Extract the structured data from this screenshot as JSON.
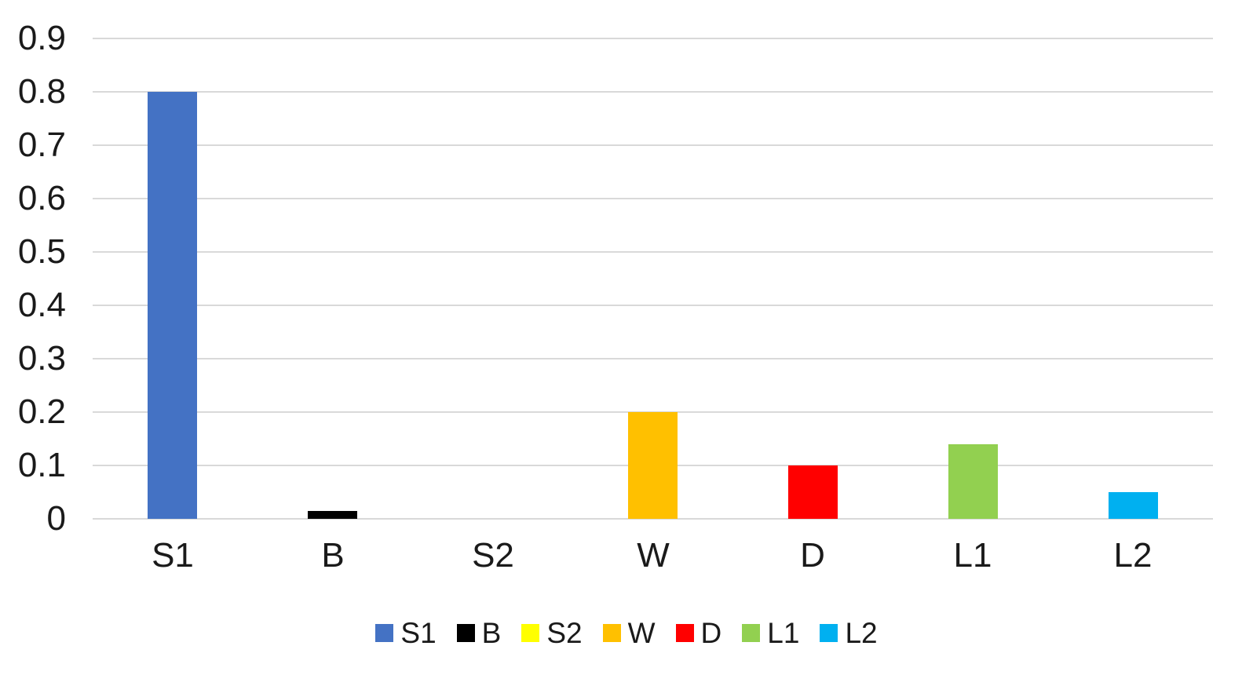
{
  "chart_data": {
    "type": "bar",
    "title": "",
    "xlabel": "",
    "ylabel": "",
    "categories": [
      "S1",
      "B",
      "S2",
      "W",
      "D",
      "L1",
      "L2"
    ],
    "values": [
      0.8,
      0.015,
      0,
      0.2,
      0.1,
      0.14,
      0.05
    ],
    "colors": [
      "#4472C4",
      "#000000",
      "#FFFF00",
      "#FFC000",
      "#FF0000",
      "#92D050",
      "#00B0F0"
    ],
    "ylim": [
      0,
      0.9
    ],
    "ytick_labels": [
      "0",
      "0.1",
      "0.2",
      "0.3",
      "0.4",
      "0.5",
      "0.6",
      "0.7",
      "0.8",
      "0.9"
    ],
    "grid": "horizontal",
    "gridline_color": "#D9D9D9",
    "background_color": "#FFFFFF",
    "text_color": "#1a1a1a",
    "legend": {
      "position": "bottom",
      "entries": [
        {
          "label": "S1",
          "color": "#4472C4"
        },
        {
          "label": "B",
          "color": "#000000"
        },
        {
          "label": "S2",
          "color": "#FFFF00"
        },
        {
          "label": "W",
          "color": "#FFC000"
        },
        {
          "label": "D",
          "color": "#FF0000"
        },
        {
          "label": "L1",
          "color": "#92D050"
        },
        {
          "label": "L2",
          "color": "#00B0F0"
        }
      ]
    }
  }
}
